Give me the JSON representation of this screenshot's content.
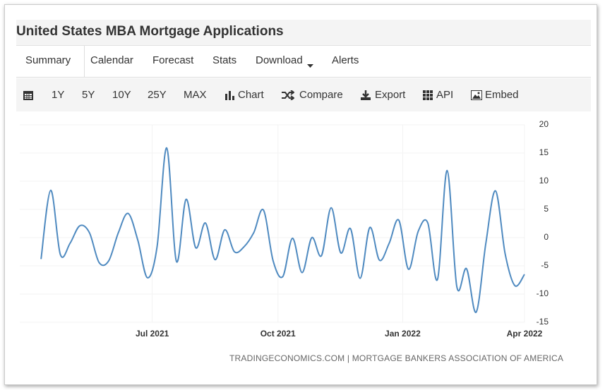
{
  "header": {
    "title": "United States MBA Mortgage Applications"
  },
  "nav": {
    "tabs": [
      "Summary",
      "Calendar",
      "Forecast",
      "Stats",
      "Download",
      "Alerts"
    ]
  },
  "toolbar": {
    "items": [
      "1Y",
      "5Y",
      "10Y",
      "25Y",
      "MAX",
      "Chart",
      "Compare",
      "Export",
      "API",
      "Embed"
    ]
  },
  "chart_data": {
    "type": "line",
    "x": [
      0,
      1,
      2,
      3,
      4,
      5,
      6,
      7,
      8,
      9,
      10,
      11,
      12,
      13,
      14,
      15,
      16,
      17,
      18,
      19,
      20,
      21,
      22,
      23,
      24,
      25,
      26,
      27,
      28,
      29,
      30,
      31,
      32,
      33,
      34,
      35,
      36,
      37,
      38,
      39,
      40,
      41,
      42,
      43,
      44,
      45,
      46,
      47,
      48,
      49,
      50
    ],
    "series": [
      {
        "name": "MBA Mortgage Applications",
        "color": "#4f8ac0",
        "values": [
          -3.8,
          8.4,
          -3,
          -1,
          2.1,
          0.9,
          -4.4,
          -4.1,
          0.9,
          4.3,
          -0.4,
          -7.1,
          -1.6,
          15.9,
          -4.2,
          6.8,
          -1.8,
          2.6,
          -3.9,
          1.4,
          -2.5,
          -1.6,
          0.9,
          4.9,
          -4.1,
          -6.9,
          -0.1,
          -6.2,
          0,
          -3.2,
          5.3,
          -2.7,
          1.6,
          -7.2,
          1.8,
          -4,
          -1,
          3.1,
          -5.6,
          1.1,
          2.6,
          -7.4,
          11.9,
          -8.7,
          -5.5,
          -13.2,
          -1,
          8.3,
          -2.9,
          -8.5,
          -6.5
        ]
      }
    ],
    "xlim": [
      -2.2,
      50
    ],
    "xticks": [
      {
        "value": 11.5,
        "label": "Jul 2021"
      },
      {
        "value": 24.5,
        "label": "Oct 2021"
      },
      {
        "value": 37.4,
        "label": "Jan 2022"
      },
      {
        "value": 50,
        "label": "Apr 2022"
      }
    ],
    "ylim": [
      -15,
      20
    ],
    "yticks": [
      20,
      15,
      10,
      5,
      0,
      -5,
      -10,
      -15
    ],
    "grid": true
  },
  "footer": {
    "source": "TRADINGECONOMICS.COM | MORTGAGE BANKERS ASSOCIATION OF AMERICA"
  }
}
